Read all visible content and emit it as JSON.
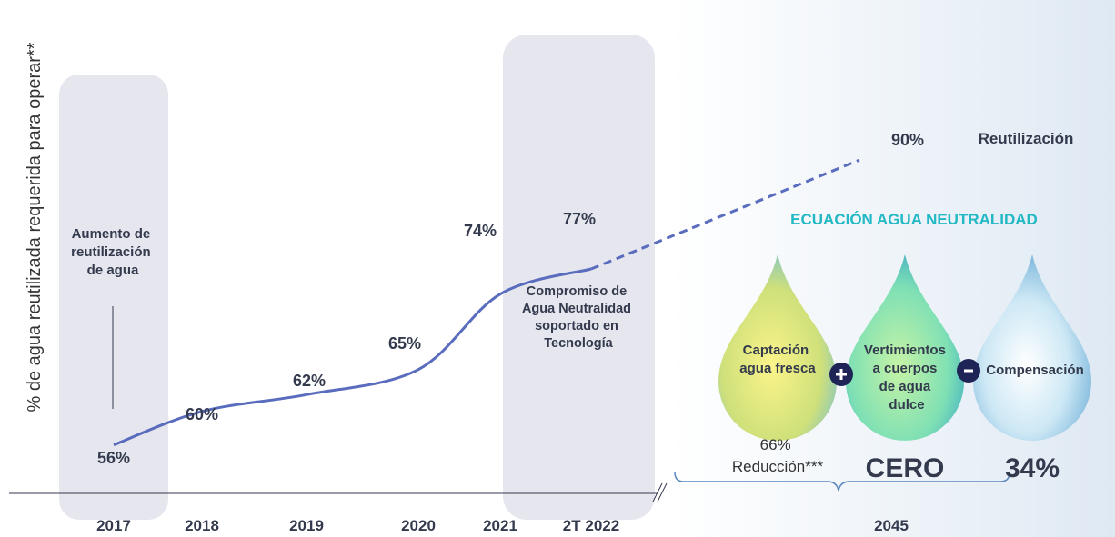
{
  "chart_data": {
    "type": "line",
    "y_label": "% de agua reutilizada requerida para operar**",
    "categories": [
      "2017",
      "2018",
      "2019",
      "2020",
      "2021",
      "2T 2022",
      "2045"
    ],
    "series": [
      {
        "color": "#5a6cbd",
        "style": "solid",
        "values": [
          56,
          60,
          62,
          65,
          74,
          77,
          null
        ],
        "value_labels": [
          "56%",
          "60%",
          "62%",
          "65%",
          "74%",
          "77%",
          null
        ]
      },
      {
        "color": "#5a6cbd",
        "style": "dashed",
        "values": [
          null,
          null,
          null,
          null,
          null,
          77,
          90
        ],
        "value_labels": [
          null,
          null,
          null,
          null,
          null,
          null,
          "90%"
        ]
      }
    ],
    "ylim": [
      50,
      95
    ],
    "annotations": {
      "reuse_increase": [
        "Aumento de",
        "reutilización",
        "de agua"
      ],
      "commitment": [
        "Compromiso de",
        "Agua Neutralidad",
        "soportado en",
        "Tecnología"
      ],
      "reuse_label": "Reutilización",
      "equation_title": "ECUACIÓN AGUA NEUTRALIDAD",
      "drops": [
        {
          "label": [
            "Captación",
            "agua fresca"
          ],
          "result": [
            "66%",
            "Reducción***"
          ]
        },
        {
          "label": [
            "Vertimientos",
            "a cuerpos",
            "de agua",
            "dulce"
          ],
          "result": [
            "CERO"
          ]
        },
        {
          "label": [
            "Compensación"
          ],
          "result": [
            "34%"
          ]
        }
      ]
    }
  }
}
